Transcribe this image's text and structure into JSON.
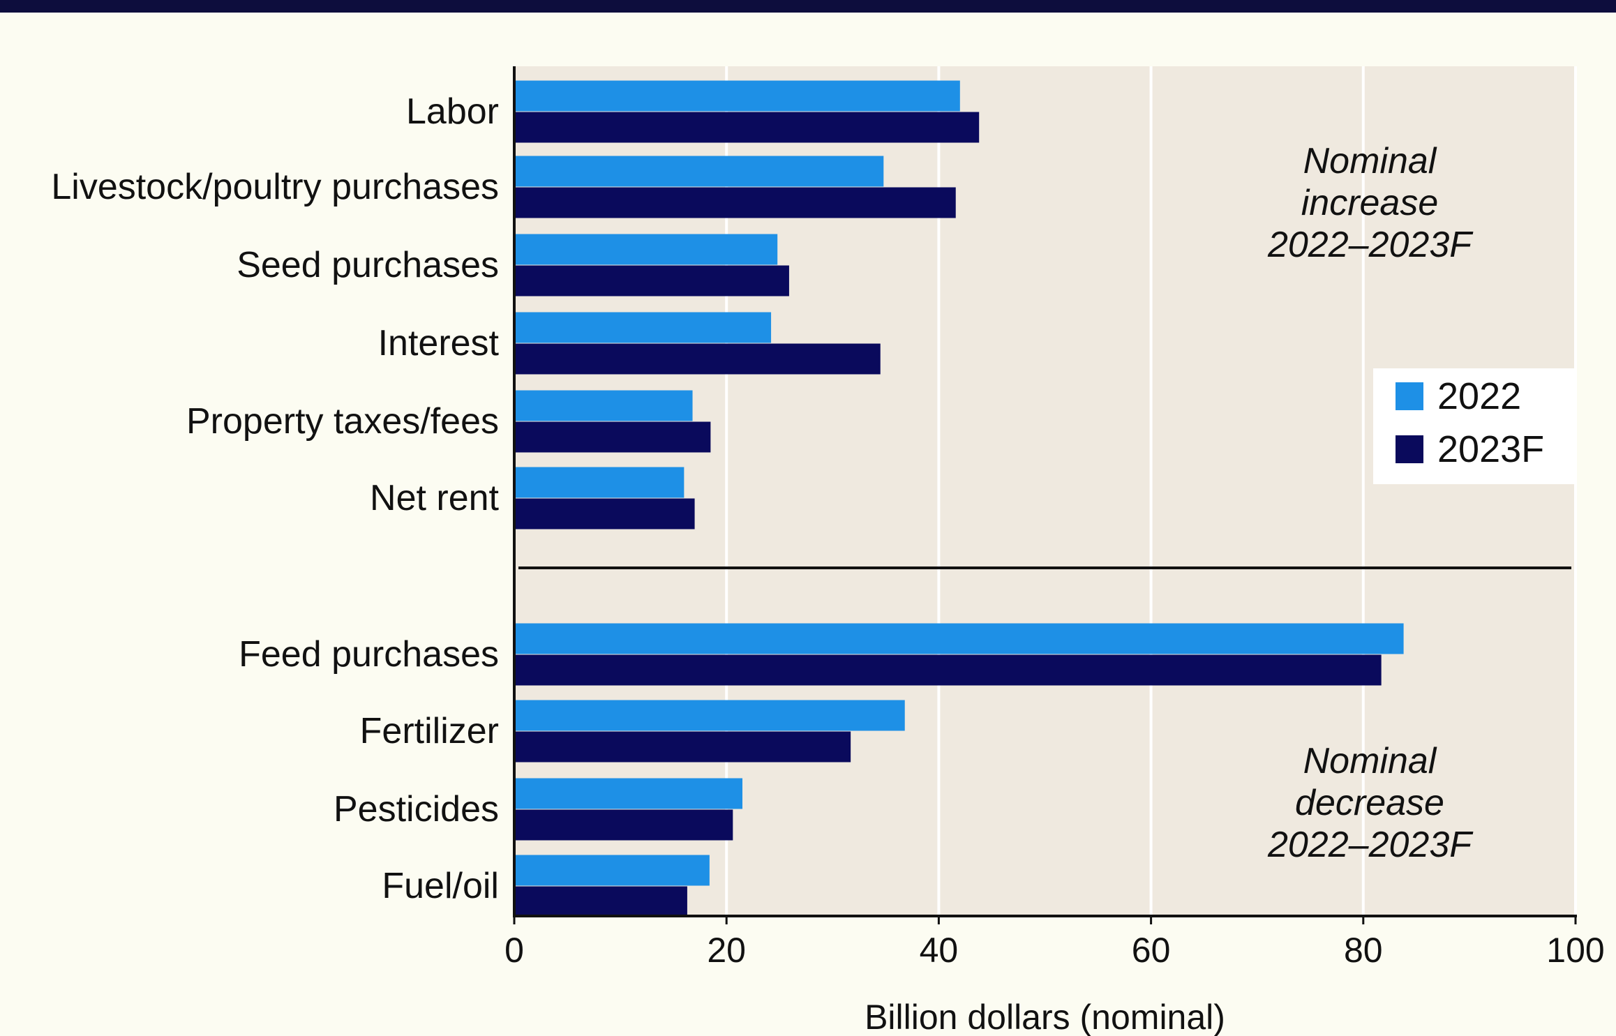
{
  "chart_data": {
    "type": "bar",
    "orientation": "horizontal",
    "categories": [
      "Labor",
      "Livestock/poultry purchases",
      "Seed purchases",
      "Interest",
      "Property taxes/fees",
      "Net rent",
      "Feed purchases",
      "Fertilizer",
      "Pesticides",
      "Fuel/oil"
    ],
    "series": [
      {
        "name": "2022",
        "color": "#1e90e6",
        "values": [
          42,
          34.8,
          24.8,
          24.2,
          16.8,
          16,
          83.8,
          36.8,
          21.5,
          18.4
        ]
      },
      {
        "name": "2023F",
        "color": "#0a0a5c",
        "values": [
          43.8,
          41.6,
          25.9,
          34.5,
          18.5,
          17,
          81.7,
          31.7,
          20.6,
          16.3
        ]
      }
    ],
    "groups": [
      {
        "label": "Nominal increase 2022–2023F",
        "lines": [
          "Nominal",
          "increase",
          "2022–2023F"
        ],
        "categories": [
          0,
          1,
          2,
          3,
          4,
          5
        ]
      },
      {
        "label": "Nominal decrease 2022–2023F",
        "lines": [
          "Nominal",
          "decrease",
          "2022–2023F"
        ],
        "categories": [
          6,
          7,
          8,
          9
        ]
      }
    ],
    "xlabel": "Billion dollars (nominal)",
    "ylabel": "",
    "xlim": [
      0,
      100
    ],
    "xticks": [
      0,
      20,
      40,
      60,
      80,
      100
    ],
    "xtick_labels": [
      "0",
      "20",
      "40",
      "60",
      "80",
      "100"
    ],
    "grid": "vertical",
    "legend": "right",
    "plot_background": "#efe9df"
  }
}
